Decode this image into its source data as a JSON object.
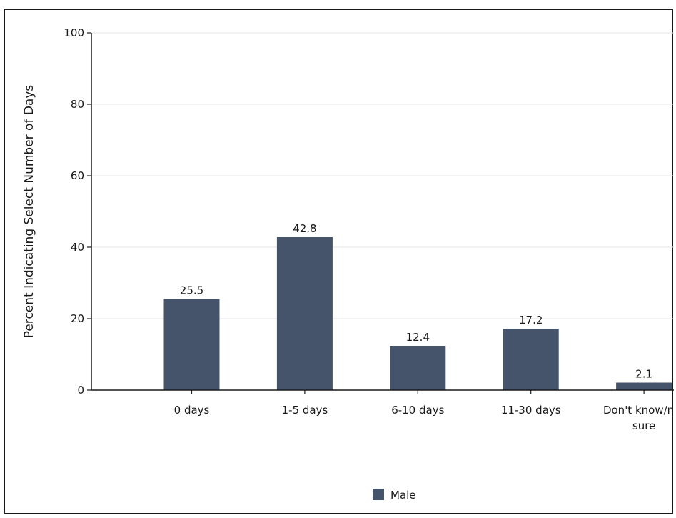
{
  "chart_data": {
    "type": "bar",
    "title": "",
    "xlabel": "",
    "ylabel": "Percent Indicating Select Number of Days",
    "categories": [
      [
        "0 days"
      ],
      [
        "1-5 days"
      ],
      [
        "6-10 days"
      ],
      [
        "11-30 days"
      ],
      [
        "Don't know/not",
        "sure"
      ]
    ],
    "series": [
      {
        "name": "Male",
        "values": [
          25.5,
          42.8,
          12.4,
          17.2,
          2.1
        ],
        "color": "#46546b"
      }
    ],
    "data_labels": [
      "25.5",
      "42.8",
      "12.4",
      "17.2",
      "2.1"
    ],
    "ylim": [
      0,
      100
    ],
    "yticks": [
      0,
      20,
      40,
      60,
      80,
      100
    ],
    "grid": true,
    "legend": "bottom-center"
  }
}
